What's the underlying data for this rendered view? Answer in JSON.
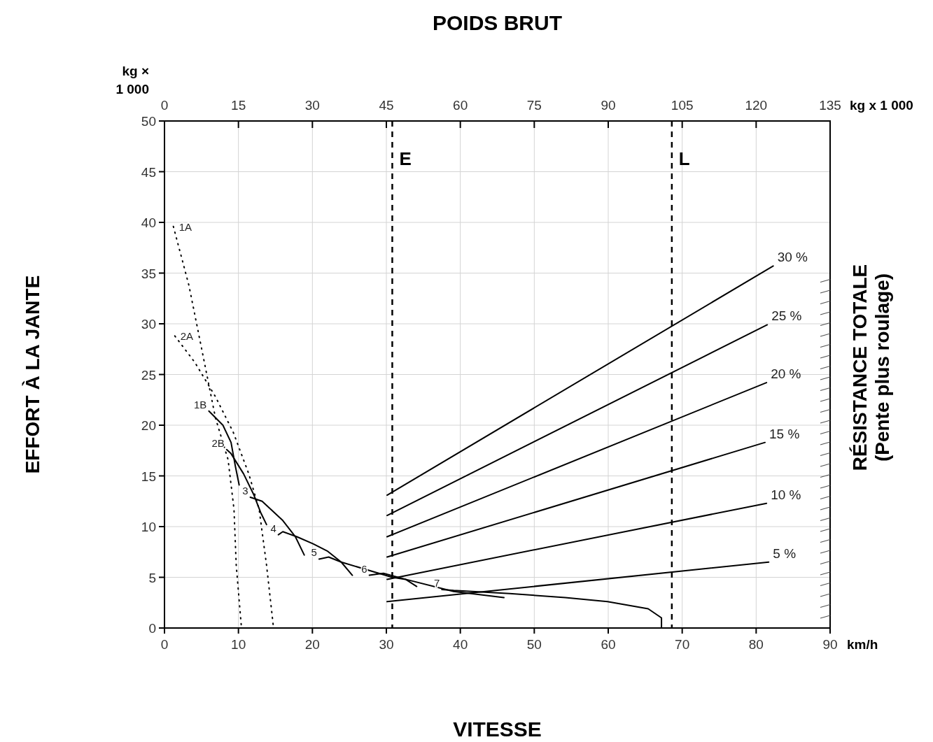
{
  "chart_data": {
    "type": "line",
    "x2label": "POIDS BRUT",
    "xlabel": "VITESSE",
    "ylabel": "EFFORT À LA JANTE",
    "y2label": "RÉSISTANCE TOTALE\n(Pente plus roulage)",
    "annotations": [
      "kg × 1 000",
      "kg x 1 000",
      "km/h"
    ],
    "xlim": [
      0,
      90
    ],
    "xticks": [
      0,
      10,
      20,
      30,
      40,
      50,
      60,
      70,
      80,
      90
    ],
    "ylim": [
      0,
      50
    ],
    "yticks": [
      0,
      5,
      10,
      15,
      20,
      25,
      30,
      35,
      40,
      45,
      50
    ],
    "x2lim": [
      0,
      135
    ],
    "x2ticks": [
      0,
      15,
      30,
      45,
      60,
      75,
      90,
      105,
      120,
      135
    ],
    "grid": true,
    "marker": "none",
    "ref_lines": [
      {
        "axis": "x",
        "value": 30.8,
        "label": "E",
        "line_style": "dashed",
        "color": "#000000"
      },
      {
        "axis": "x",
        "value": 68.6,
        "label": "L",
        "line_style": "dashed",
        "color": "#000000"
      }
    ],
    "series": [
      {
        "name": "1A",
        "color": "#000000",
        "line_style": "dotted",
        "x": [
          1.2,
          3.3,
          5.2,
          6.9,
          8.6,
          9.4,
          9.7,
          10.4
        ],
        "values": [
          39.6,
          33.8,
          26.9,
          20.7,
          16.6,
          11.7,
          6.2,
          0.1
        ]
      },
      {
        "name": "2A",
        "color": "#000000",
        "line_style": "dotted",
        "x": [
          1.4,
          4.1,
          6.9,
          9.3,
          11.4,
          12.8,
          13.8,
          14.7
        ],
        "values": [
          28.8,
          26.2,
          22.8,
          19.3,
          15.2,
          11.7,
          6.2,
          0.3
        ]
      },
      {
        "name": "1B",
        "color": "#000000",
        "line_style": "solid",
        "x": [
          6.0,
          7.9,
          9.0,
          9.6,
          10.1
        ],
        "values": [
          21.4,
          20.0,
          18.3,
          15.9,
          14.1
        ]
      },
      {
        "name": "2B",
        "color": "#000000",
        "line_style": "solid",
        "x": [
          8.4,
          9.0,
          10.7,
          12.1,
          13.0,
          13.8
        ],
        "values": [
          17.6,
          17.2,
          15.2,
          13.1,
          11.4,
          10.2
        ]
      },
      {
        "name": "3",
        "color": "#000000",
        "line_style": "solid",
        "x": [
          11.6,
          13.2,
          16.0,
          17.7,
          18.9
        ],
        "values": [
          12.9,
          12.5,
          10.6,
          9.0,
          7.2
        ]
      },
      {
        "name": "4",
        "color": "#000000",
        "line_style": "solid",
        "x": [
          15.4,
          16.0,
          17.9,
          20.1,
          22.0,
          23.9,
          25.4
        ],
        "values": [
          9.2,
          9.5,
          9.0,
          8.3,
          7.6,
          6.5,
          5.2
        ]
      },
      {
        "name": "5",
        "color": "#000000",
        "line_style": "solid",
        "x": [
          20.9,
          22.2,
          23.9,
          30.8,
          32.6,
          34.1
        ],
        "values": [
          6.8,
          7.0,
          6.5,
          5.0,
          4.8,
          4.1
        ]
      },
      {
        "name": "6",
        "color": "#000000",
        "line_style": "solid",
        "x": [
          27.7,
          29.6,
          32.6,
          39.1,
          45.9
        ],
        "values": [
          5.2,
          5.4,
          4.8,
          3.6,
          3.0
        ]
      },
      {
        "name": "7",
        "color": "#000000",
        "line_style": "solid",
        "x": [
          37.5,
          39.1,
          46.7,
          54.2,
          59.9,
          65.4,
          67.2,
          67.2
        ],
        "values": [
          3.8,
          3.7,
          3.4,
          3.0,
          2.6,
          1.9,
          1.0,
          0
        ]
      },
      {
        "name": "5 %",
        "color": "#000000",
        "line_style": "solid",
        "x": [
          30.1,
          81.7
        ],
        "values": [
          2.6,
          6.5
        ]
      },
      {
        "name": "10 %",
        "color": "#000000",
        "line_style": "solid",
        "x": [
          30.1,
          81.4
        ],
        "values": [
          4.8,
          12.3
        ]
      },
      {
        "name": "15 %",
        "color": "#000000",
        "line_style": "solid",
        "x": [
          30.1,
          81.2
        ],
        "values": [
          7.0,
          18.3
        ]
      },
      {
        "name": "20 %",
        "color": "#000000",
        "line_style": "solid",
        "x": [
          30.1,
          81.4
        ],
        "values": [
          9.0,
          24.2
        ]
      },
      {
        "name": "25 %",
        "color": "#000000",
        "line_style": "solid",
        "x": [
          30.1,
          81.5
        ],
        "values": [
          11.1,
          29.9
        ]
      },
      {
        "name": "30 %",
        "color": "#000000",
        "line_style": "solid",
        "x": [
          30.1,
          82.3
        ],
        "values": [
          13.1,
          35.7
        ]
      }
    ]
  }
}
